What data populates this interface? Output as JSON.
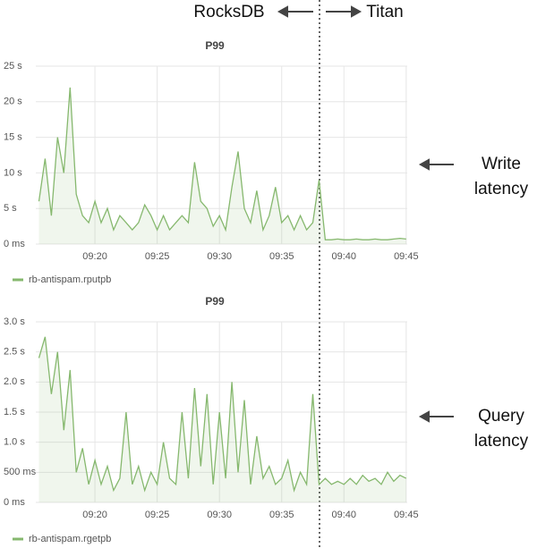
{
  "annotations": {
    "left": "RocksDB",
    "right": "Titan"
  },
  "chart_data": [
    {
      "type": "line",
      "title": "P99",
      "annotation": "Write latency",
      "x": [
        "09:15:30",
        "09:16:00",
        "09:16:30",
        "09:17:00",
        "09:17:30",
        "09:18:00",
        "09:18:30",
        "09:19:00",
        "09:19:30",
        "09:20:00",
        "09:20:30",
        "09:21:00",
        "09:21:30",
        "09:22:00",
        "09:22:30",
        "09:23:00",
        "09:23:30",
        "09:24:00",
        "09:24:30",
        "09:25:00",
        "09:25:30",
        "09:26:00",
        "09:26:30",
        "09:27:00",
        "09:27:30",
        "09:28:00",
        "09:28:30",
        "09:29:00",
        "09:29:30",
        "09:30:00",
        "09:30:30",
        "09:31:00",
        "09:31:30",
        "09:32:00",
        "09:32:30",
        "09:33:00",
        "09:33:30",
        "09:34:00",
        "09:34:30",
        "09:35:00",
        "09:35:30",
        "09:36:00",
        "09:36:30",
        "09:37:00",
        "09:37:30",
        "09:38:00",
        "09:38:30",
        "09:39:00",
        "09:39:30",
        "09:40:00",
        "09:40:30",
        "09:41:00",
        "09:41:30",
        "09:42:00",
        "09:42:30",
        "09:43:00",
        "09:43:30",
        "09:44:00",
        "09:44:30",
        "09:45:00"
      ],
      "series": [
        {
          "name": "rb-antispam.rputpb",
          "color": "#86b86e",
          "values": [
            6,
            12,
            4,
            15,
            10,
            22,
            7,
            4,
            3,
            6,
            3,
            5,
            2,
            4,
            3,
            2,
            3,
            5.5,
            4,
            2,
            4,
            2,
            3,
            4,
            3,
            11.5,
            6,
            5,
            2.5,
            4,
            2,
            8,
            13,
            5,
            3,
            7.5,
            2,
            4,
            8,
            3,
            4,
            2,
            4,
            2,
            3,
            9,
            0.6,
            0.6,
            0.7,
            0.6,
            0.6,
            0.7,
            0.6,
            0.6,
            0.7,
            0.6,
            0.6,
            0.7,
            0.8,
            0.7
          ]
        }
      ],
      "xlim": [
        "09:15:15",
        "09:45:05"
      ],
      "xticks": [
        "09:20",
        "09:25",
        "09:30",
        "09:35",
        "09:40",
        "09:45"
      ],
      "ylim": [
        0,
        25
      ],
      "yticks": [
        {
          "value": 0,
          "label": "0 ms"
        },
        {
          "value": 5,
          "label": "5 s"
        },
        {
          "value": 10,
          "label": "10 s"
        },
        {
          "value": 15,
          "label": "15 s"
        },
        {
          "value": 20,
          "label": "20 s"
        },
        {
          "value": 25,
          "label": "25 s"
        }
      ],
      "grid": true
    },
    {
      "type": "line",
      "title": "P99",
      "annotation": "Query latency",
      "x": [
        "09:15:30",
        "09:16:00",
        "09:16:30",
        "09:17:00",
        "09:17:30",
        "09:18:00",
        "09:18:30",
        "09:19:00",
        "09:19:30",
        "09:20:00",
        "09:20:30",
        "09:21:00",
        "09:21:30",
        "09:22:00",
        "09:22:30",
        "09:23:00",
        "09:23:30",
        "09:24:00",
        "09:24:30",
        "09:25:00",
        "09:25:30",
        "09:26:00",
        "09:26:30",
        "09:27:00",
        "09:27:30",
        "09:28:00",
        "09:28:30",
        "09:29:00",
        "09:29:30",
        "09:30:00",
        "09:30:30",
        "09:31:00",
        "09:31:30",
        "09:32:00",
        "09:32:30",
        "09:33:00",
        "09:33:30",
        "09:34:00",
        "09:34:30",
        "09:35:00",
        "09:35:30",
        "09:36:00",
        "09:36:30",
        "09:37:00",
        "09:37:30",
        "09:38:00",
        "09:38:30",
        "09:39:00",
        "09:39:30",
        "09:40:00",
        "09:40:30",
        "09:41:00",
        "09:41:30",
        "09:42:00",
        "09:42:30",
        "09:43:00",
        "09:43:30",
        "09:44:00",
        "09:44:30",
        "09:45:00"
      ],
      "series": [
        {
          "name": "rb-antispam.rgetpb",
          "color": "#86b86e",
          "values": [
            2.4,
            2.75,
            1.8,
            2.5,
            1.2,
            2.2,
            0.5,
            0.9,
            0.3,
            0.7,
            0.3,
            0.6,
            0.2,
            0.4,
            1.5,
            0.3,
            0.6,
            0.2,
            0.5,
            0.3,
            1.0,
            0.4,
            0.3,
            1.5,
            0.4,
            1.9,
            0.6,
            1.8,
            0.3,
            1.5,
            0.4,
            2.0,
            0.5,
            1.7,
            0.3,
            1.1,
            0.4,
            0.6,
            0.3,
            0.4,
            0.7,
            0.2,
            0.5,
            0.3,
            1.8,
            0.3,
            0.4,
            0.3,
            0.35,
            0.3,
            0.4,
            0.3,
            0.45,
            0.35,
            0.4,
            0.3,
            0.5,
            0.35,
            0.45,
            0.4
          ]
        }
      ],
      "xlim": [
        "09:15:15",
        "09:45:05"
      ],
      "xticks": [
        "09:20",
        "09:25",
        "09:30",
        "09:35",
        "09:40",
        "09:45"
      ],
      "ylim": [
        0,
        3
      ],
      "yticks": [
        {
          "value": 0,
          "label": "0 ms"
        },
        {
          "value": 0.5,
          "label": "500 ms"
        },
        {
          "value": 1,
          "label": "1.0 s"
        },
        {
          "value": 1.5,
          "label": "1.5 s"
        },
        {
          "value": 2,
          "label": "2.0 s"
        },
        {
          "value": 2.5,
          "label": "2.5 s"
        },
        {
          "value": 3,
          "label": "3.0 s"
        }
      ],
      "grid": true
    }
  ]
}
